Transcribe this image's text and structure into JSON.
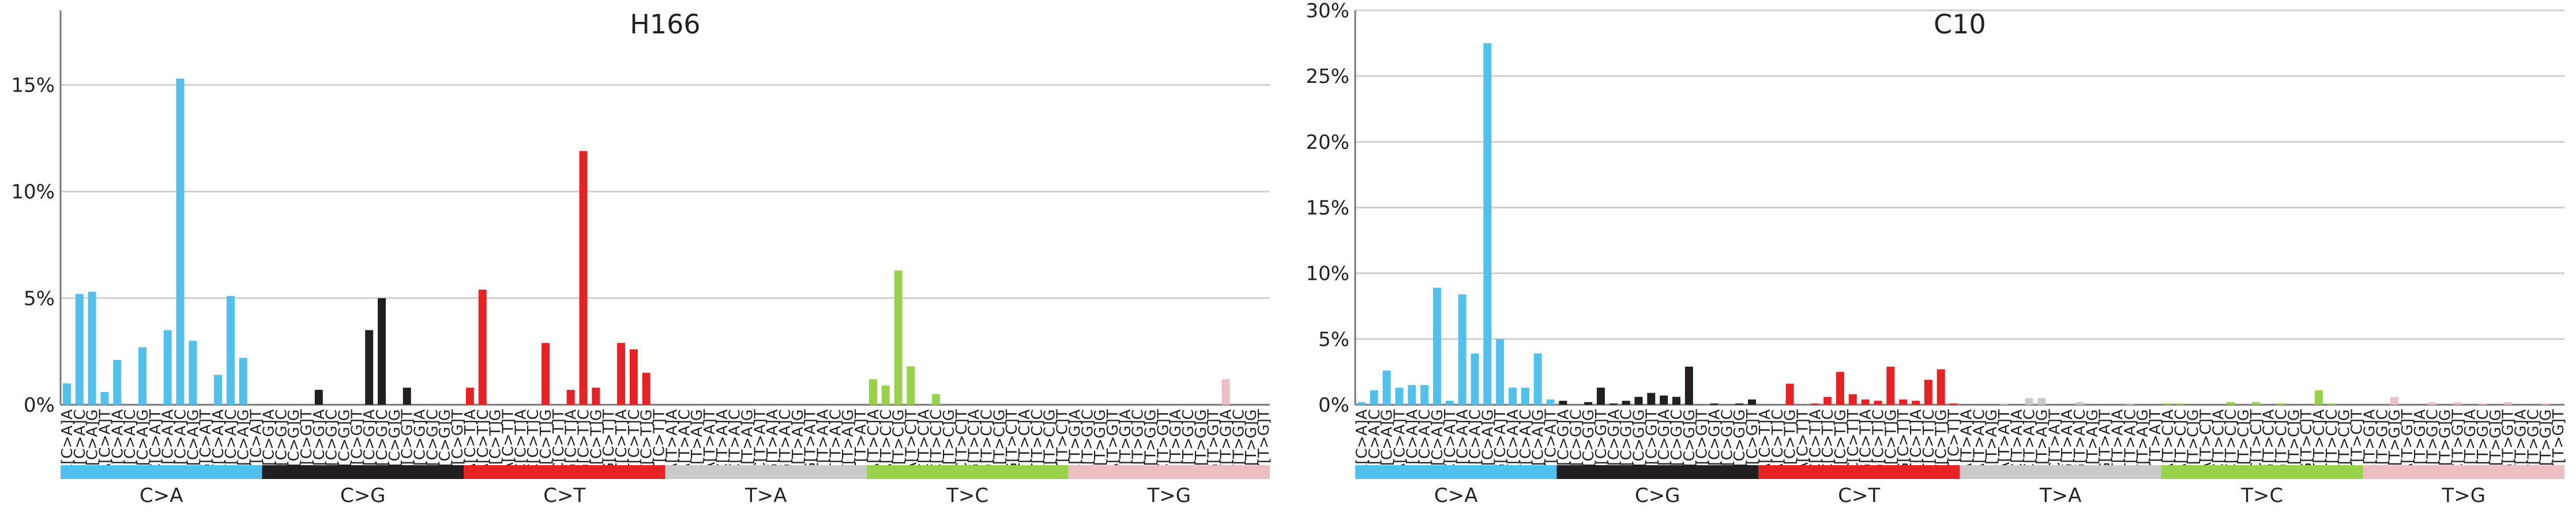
{
  "chart_data": [
    {
      "type": "bar",
      "title": "H166",
      "xlabel": "",
      "ylabel": "",
      "ylim": [
        0,
        18.5
      ],
      "yticks": [
        0,
        5,
        10,
        15
      ],
      "ytick_labels": [
        "0%",
        "5%",
        "10%",
        "15%"
      ],
      "grid": true,
      "categories": [
        "A[C>A]A",
        "A[C>A]C",
        "A[C>A]G",
        "A[C>A]T",
        "C[C>A]A",
        "C[C>A]C",
        "C[C>A]G",
        "C[C>A]T",
        "G[C>A]A",
        "G[C>A]C",
        "G[C>A]G",
        "G[C>A]T",
        "T[C>A]A",
        "T[C>A]C",
        "T[C>A]G",
        "T[C>A]T",
        "A[C>G]A",
        "A[C>G]C",
        "A[C>G]G",
        "A[C>G]T",
        "C[C>G]A",
        "C[C>G]C",
        "C[C>G]G",
        "C[C>G]T",
        "G[C>G]A",
        "G[C>G]C",
        "G[C>G]G",
        "G[C>G]T",
        "T[C>G]A",
        "T[C>G]C",
        "T[C>G]G",
        "T[C>G]T",
        "A[C>T]A",
        "A[C>T]C",
        "A[C>T]G",
        "A[C>T]T",
        "C[C>T]A",
        "C[C>T]C",
        "C[C>T]G",
        "C[C>T]T",
        "G[C>T]A",
        "G[C>T]C",
        "G[C>T]G",
        "G[C>T]T",
        "T[C>T]A",
        "T[C>T]C",
        "T[C>T]G",
        "T[C>T]T",
        "A[T>A]A",
        "A[T>A]C",
        "A[T>A]G",
        "A[T>A]T",
        "C[T>A]A",
        "C[T>A]C",
        "C[T>A]G",
        "C[T>A]T",
        "G[T>A]A",
        "G[T>A]C",
        "G[T>A]G",
        "G[T>A]T",
        "T[T>A]A",
        "T[T>A]C",
        "T[T>A]G",
        "T[T>A]T",
        "A[T>C]A",
        "A[T>C]C",
        "A[T>C]G",
        "A[T>C]T",
        "C[T>C]A",
        "C[T>C]C",
        "C[T>C]G",
        "C[T>C]T",
        "G[T>C]A",
        "G[T>C]C",
        "G[T>C]G",
        "G[T>C]T",
        "T[T>C]A",
        "T[T>C]C",
        "T[T>C]G",
        "T[T>C]T",
        "A[T>G]A",
        "A[T>G]C",
        "A[T>G]G",
        "A[T>G]T",
        "C[T>G]A",
        "C[T>G]C",
        "C[T>G]G",
        "C[T>G]T",
        "G[T>G]A",
        "G[T>G]C",
        "G[T>G]G",
        "G[T>G]T",
        "T[T>G]A",
        "T[T>G]C",
        "T[T>G]G",
        "T[T>G]T"
      ],
      "values": [
        1.0,
        5.2,
        5.3,
        0.6,
        2.1,
        0,
        2.7,
        0,
        3.5,
        15.3,
        3.0,
        0,
        1.4,
        5.1,
        2.2,
        0,
        0,
        0,
        0,
        0,
        0.7,
        0,
        0,
        0,
        3.5,
        5.0,
        0,
        0.8,
        0,
        0,
        0,
        0,
        0.8,
        5.4,
        0,
        0,
        0,
        0,
        2.9,
        0,
        0.7,
        11.9,
        0.8,
        0,
        2.9,
        2.6,
        1.5,
        0,
        0,
        0,
        0,
        0,
        0,
        0,
        0,
        0,
        0,
        0,
        0,
        0,
        0,
        0,
        0,
        0,
        1.2,
        0.9,
        6.3,
        1.8,
        0,
        0.5,
        0,
        0,
        0,
        0,
        0,
        0,
        0,
        0,
        0,
        0,
        0,
        0,
        0,
        0,
        0,
        0,
        0,
        0,
        0,
        0,
        0,
        0,
        1.2,
        0,
        0,
        0
      ],
      "groups": [
        "C>A",
        "C>G",
        "C>T",
        "T>A",
        "T>C",
        "T>G"
      ]
    },
    {
      "type": "bar",
      "title": "C10",
      "xlabel": "",
      "ylabel": "",
      "ylim": [
        0,
        30.0
      ],
      "yticks": [
        0,
        5,
        10,
        15,
        20,
        25,
        30
      ],
      "ytick_labels": [
        "0%",
        "5%",
        "10%",
        "15%",
        "20%",
        "25%",
        "30%"
      ],
      "grid": true,
      "categories": [
        "A[C>A]A",
        "A[C>A]C",
        "A[C>A]G",
        "A[C>A]T",
        "C[C>A]A",
        "C[C>A]C",
        "C[C>A]G",
        "C[C>A]T",
        "G[C>A]A",
        "G[C>A]C",
        "G[C>A]G",
        "G[C>A]T",
        "T[C>A]A",
        "T[C>A]C",
        "T[C>A]G",
        "T[C>A]T",
        "A[C>G]A",
        "A[C>G]C",
        "A[C>G]G",
        "A[C>G]T",
        "C[C>G]A",
        "C[C>G]C",
        "C[C>G]G",
        "C[C>G]T",
        "G[C>G]A",
        "G[C>G]C",
        "G[C>G]G",
        "G[C>G]T",
        "T[C>G]A",
        "T[C>G]C",
        "T[C>G]G",
        "T[C>G]T",
        "A[C>T]A",
        "A[C>T]C",
        "A[C>T]G",
        "A[C>T]T",
        "C[C>T]A",
        "C[C>T]C",
        "C[C>T]G",
        "C[C>T]T",
        "G[C>T]A",
        "G[C>T]C",
        "G[C>T]G",
        "G[C>T]T",
        "T[C>T]A",
        "T[C>T]C",
        "T[C>T]G",
        "T[C>T]T",
        "A[T>A]A",
        "A[T>A]C",
        "A[T>A]G",
        "A[T>A]T",
        "C[T>A]A",
        "C[T>A]C",
        "C[T>A]G",
        "C[T>A]T",
        "G[T>A]A",
        "G[T>A]C",
        "G[T>A]G",
        "G[T>A]T",
        "T[T>A]A",
        "T[T>A]C",
        "T[T>A]G",
        "T[T>A]T",
        "A[T>C]A",
        "A[T>C]C",
        "A[T>C]G",
        "A[T>C]T",
        "C[T>C]A",
        "C[T>C]C",
        "C[T>C]G",
        "C[T>C]T",
        "G[T>C]A",
        "G[T>C]C",
        "G[T>C]G",
        "G[T>C]T",
        "T[T>C]A",
        "T[T>C]C",
        "T[T>C]G",
        "T[T>C]T",
        "A[T>G]A",
        "A[T>G]C",
        "A[T>G]G",
        "A[T>G]T",
        "C[T>G]A",
        "C[T>G]C",
        "C[T>G]G",
        "C[T>G]T",
        "G[T>G]A",
        "G[T>G]C",
        "G[T>G]G",
        "G[T>G]T",
        "T[T>G]A",
        "T[T>G]C",
        "T[T>G]G",
        "T[T>G]T"
      ],
      "values": [
        0.2,
        1.1,
        2.6,
        1.3,
        1.5,
        1.5,
        8.9,
        0.3,
        8.4,
        3.9,
        27.5,
        5.0,
        1.3,
        1.3,
        3.9,
        0.4,
        0.3,
        0,
        0.2,
        1.3,
        0.1,
        0.3,
        0.6,
        0.9,
        0.7,
        0.6,
        2.9,
        0,
        0.1,
        0,
        0.1,
        0.4,
        0,
        0,
        1.6,
        0,
        0.1,
        0.6,
        2.5,
        0.8,
        0.4,
        0.3,
        2.9,
        0.4,
        0.3,
        1.9,
        2.7,
        0.1,
        0,
        0,
        0,
        0.1,
        0,
        0.5,
        0.5,
        0,
        0,
        0.2,
        0,
        0,
        0,
        0.1,
        0,
        0,
        0.1,
        0.1,
        0,
        0,
        0,
        0.2,
        0,
        0.2,
        0,
        0.1,
        0,
        0,
        1.1,
        0.1,
        0,
        0,
        0,
        0,
        0.6,
        0,
        0,
        0.2,
        0,
        0.2,
        0,
        0.1,
        0,
        0.2,
        0,
        0,
        0.1,
        0
      ]
    }
  ],
  "group_colors": {
    "C>A": "#52c0ec",
    "C>G": "#231f20",
    "C>T": "#e62225",
    "T>A": "#cbcacb",
    "T>C": "#97d24a",
    "T>G": "#edbfc2"
  }
}
